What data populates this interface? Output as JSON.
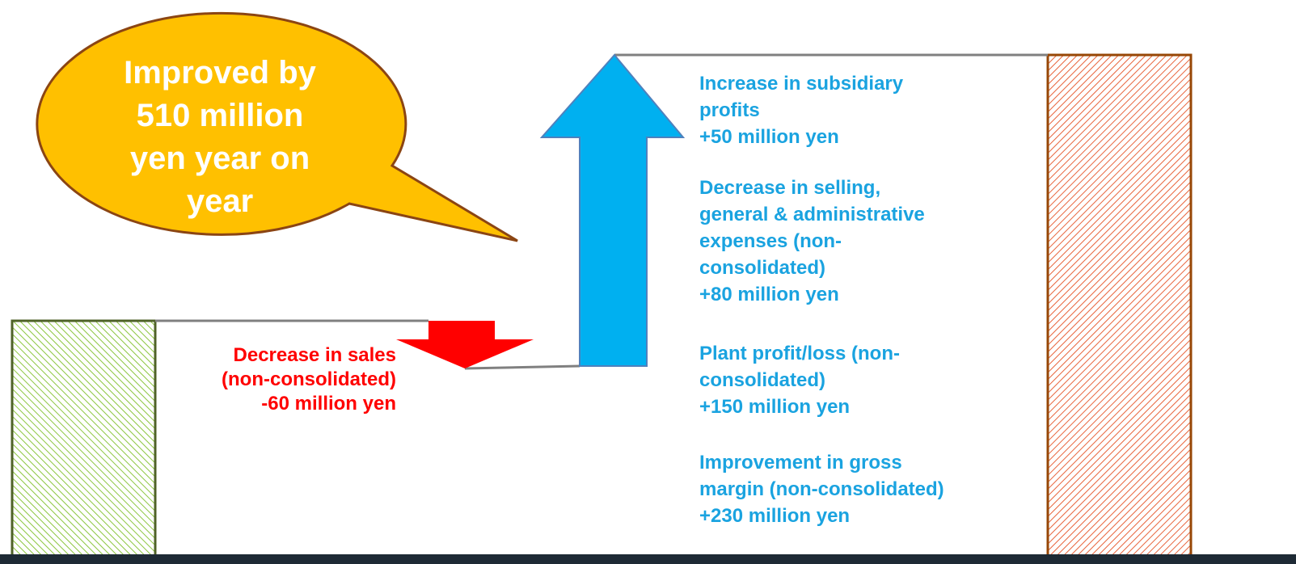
{
  "callout": {
    "lines": [
      "Improved by",
      "510 million",
      "yen year on",
      "year"
    ]
  },
  "decrease": {
    "lines": [
      "Decrease in sales",
      "(non-consolidated)",
      "-60 million yen"
    ]
  },
  "increases": [
    {
      "lines": [
        "Increase in subsidiary",
        "profits",
        "+50 million yen"
      ]
    },
    {
      "lines": [
        "Decrease in selling,",
        "general & administrative",
        "expenses (non-",
        "consolidated)",
        "+80 million yen"
      ]
    },
    {
      "lines": [
        "Plant profit/loss (non-",
        "consolidated)",
        "+150 million yen"
      ]
    },
    {
      "lines": [
        "Improvement in gross",
        "margin (non-consolidated)",
        "+230 million yen"
      ]
    }
  ]
}
